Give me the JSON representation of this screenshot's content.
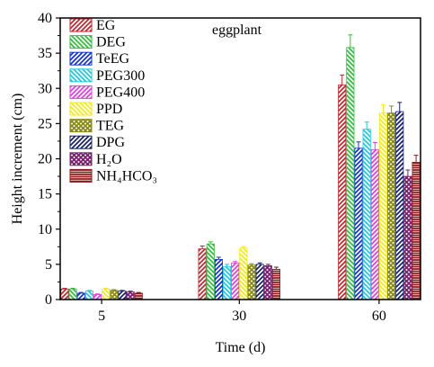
{
  "chart_data": {
    "type": "bar",
    "title": "eggplant",
    "xlabel": "Time (d)",
    "ylabel": "Height increment (cm)",
    "categories": [
      "5",
      "30",
      "60"
    ],
    "ylim": [
      0,
      40
    ],
    "yticks": [
      0,
      5,
      10,
      15,
      20,
      25,
      30,
      35,
      40
    ],
    "grid": false,
    "legend_position": "top-left",
    "series": [
      {
        "name": "EG",
        "color": "#c0262d",
        "pattern": "diag-up",
        "values": [
          1.5,
          7.2,
          30.5
        ],
        "errors": [
          0.1,
          0.4,
          1.4
        ]
      },
      {
        "name": "DEG",
        "color": "#2fbf3a",
        "pattern": "diag-down",
        "values": [
          1.5,
          7.9,
          35.8
        ],
        "errors": [
          0.1,
          0.3,
          1.8
        ]
      },
      {
        "name": "TeEG",
        "color": "#1432d2",
        "pattern": "diag-up",
        "values": [
          0.9,
          5.7,
          21.5
        ],
        "errors": [
          0.1,
          0.3,
          0.9
        ]
      },
      {
        "name": "PEG300",
        "color": "#21c8dc",
        "pattern": "diag-down",
        "values": [
          1.2,
          4.7,
          24.2
        ],
        "errors": [
          0.1,
          0.3,
          1.0
        ]
      },
      {
        "name": "PEG400",
        "color": "#e23ce0",
        "pattern": "diag-up",
        "values": [
          0.7,
          5.2,
          21.3
        ],
        "errors": [
          0.1,
          0.2,
          1.0
        ]
      },
      {
        "name": "PPD",
        "color": "#f2ea1a",
        "pattern": "diag-down",
        "values": [
          1.5,
          7.3,
          26.5
        ],
        "errors": [
          0.1,
          0.2,
          1.2
        ]
      },
      {
        "name": "TEG",
        "color": "#8a8a1a",
        "pattern": "cross",
        "values": [
          1.3,
          4.9,
          26.5
        ],
        "errors": [
          0.1,
          0.2,
          1.0
        ]
      },
      {
        "name": "DPG",
        "color": "#16206e",
        "pattern": "diag-up",
        "values": [
          1.2,
          5.0,
          26.7
        ],
        "errors": [
          0.1,
          0.2,
          1.3
        ]
      },
      {
        "name": "H₂O",
        "color": "#7a1f6e",
        "pattern": "cross",
        "values": [
          1.1,
          4.8,
          17.5
        ],
        "errors": [
          0.1,
          0.2,
          0.9
        ]
      },
      {
        "name": "NH₄HCO₃",
        "color": "#8e1a1a",
        "pattern": "horiz",
        "values": [
          0.9,
          4.3,
          19.5
        ],
        "errors": [
          0.1,
          0.3,
          1.0
        ]
      }
    ]
  }
}
